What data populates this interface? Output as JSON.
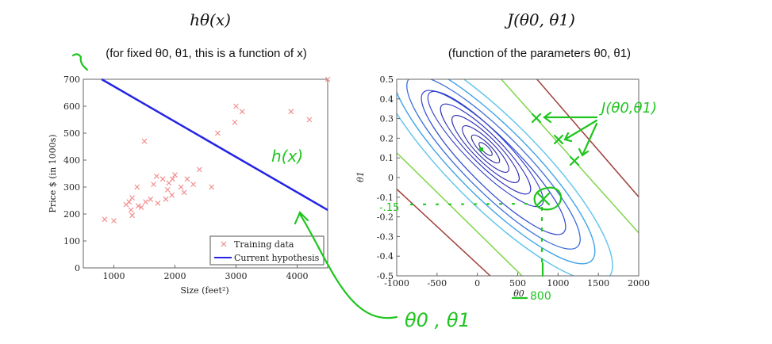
{
  "chart_data": [
    {
      "type": "scatter",
      "title": "hθ(x)",
      "subtitle": "(for fixed θ0, θ1, this is a function of x)",
      "xlabel": "Size (feet²)",
      "ylabel": "Price $ (in 1000s)",
      "xlim": [
        500,
        4500
      ],
      "ylim": [
        0,
        700
      ],
      "xticks": [
        "1000",
        "2000",
        "3000",
        "4000"
      ],
      "yticks": [
        "0",
        "100",
        "200",
        "300",
        "400",
        "500",
        "600",
        "700"
      ],
      "grid": false,
      "legend_position": "bottom-right",
      "colors": {
        "training": "#f08a8a",
        "hypothesis": "#2424e6"
      },
      "series": [
        {
          "name": "Training data",
          "points": [
            [
              850,
              180
            ],
            [
              1000,
              175
            ],
            [
              1200,
              235
            ],
            [
              1250,
              245
            ],
            [
              1280,
              215
            ],
            [
              1300,
              260
            ],
            [
              1300,
              195
            ],
            [
              1380,
              300
            ],
            [
              1400,
              230
            ],
            [
              1450,
              225
            ],
            [
              1500,
              470
            ],
            [
              1520,
              245
            ],
            [
              1600,
              255
            ],
            [
              1650,
              310
            ],
            [
              1700,
              340
            ],
            [
              1720,
              240
            ],
            [
              1800,
              330
            ],
            [
              1850,
              255
            ],
            [
              1880,
              290
            ],
            [
              1900,
              315
            ],
            [
              1950,
              270
            ],
            [
              1960,
              330
            ],
            [
              2000,
              345
            ],
            [
              2100,
              300
            ],
            [
              2150,
              280
            ],
            [
              2200,
              330
            ],
            [
              2300,
              310
            ],
            [
              2400,
              365
            ],
            [
              2600,
              300
            ],
            [
              2700,
              500
            ],
            [
              2980,
              540
            ],
            [
              3000,
              600
            ],
            [
              3100,
              580
            ],
            [
              3900,
              580
            ],
            [
              4200,
              550
            ],
            [
              4500,
              700
            ]
          ]
        },
        {
          "name": "Current hypothesis",
          "points": [
            [
              800,
              700
            ],
            [
              4500,
              215
            ]
          ]
        }
      ]
    },
    {
      "type": "contour",
      "title": "J(θ0, θ1)",
      "subtitle": "(function of the parameters θ0, θ1)",
      "xlabel": "θ0",
      "ylabel": "θ1",
      "xlim": [
        -1000,
        2000
      ],
      "ylim": [
        -0.5,
        0.5
      ],
      "xticks": [
        "-1000",
        "-500",
        "0",
        "500",
        "1000",
        "1500",
        "2000"
      ],
      "yticks": [
        "-0.5",
        "-0.4",
        "-0.3",
        "-0.2",
        "-0.1",
        "0",
        "0.1",
        "0.2",
        "0.3",
        "0.4",
        "0.5"
      ],
      "minimum": [
        0,
        0.14
      ],
      "highlighted_point": [
        800,
        -0.15
      ]
    }
  ],
  "annotations": {
    "hx": "h(x)",
    "J": "J(θ0,θ1)",
    "params": "θ0 , θ1",
    "th1_value": "-.15",
    "th0_value": "800"
  }
}
